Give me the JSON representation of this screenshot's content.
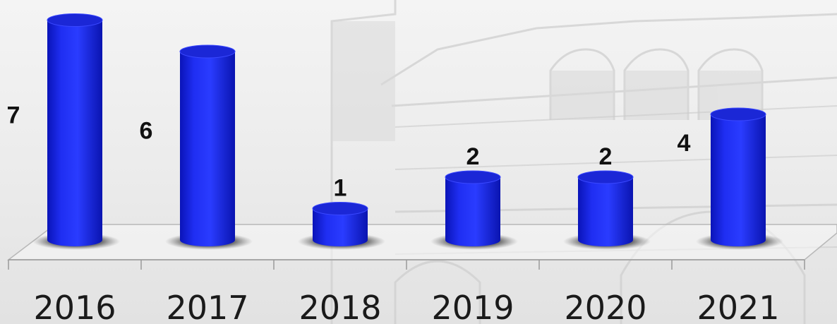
{
  "chart_data": {
    "type": "bar",
    "style": "3d-cylinder",
    "categories": [
      "2016",
      "2017",
      "2018",
      "2019",
      "2020",
      "2021"
    ],
    "values": [
      7,
      6,
      1,
      2,
      2,
      4
    ],
    "title": "",
    "xlabel": "",
    "ylabel": "",
    "ylim": [
      0,
      7
    ],
    "grid": false,
    "legend": "none",
    "bar_color": "#1f2ef2",
    "background": "faded photograph of a brick building"
  }
}
